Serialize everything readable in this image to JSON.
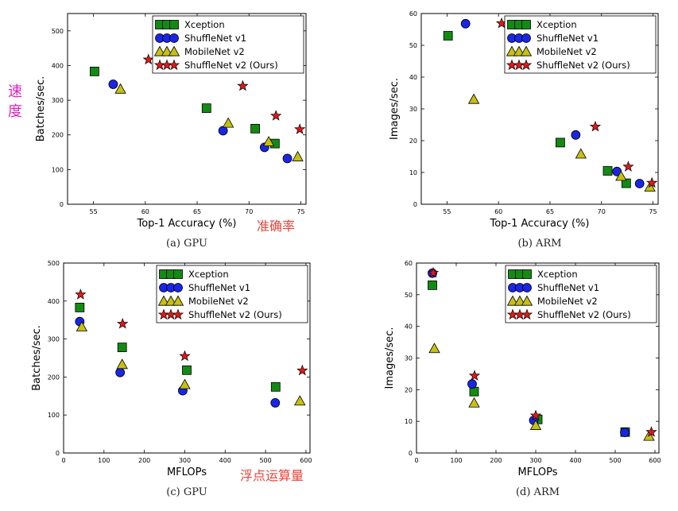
{
  "series_styles": {
    "Xception": {
      "marker": "square",
      "color": "#138a13"
    },
    "ShuffleNet v1": {
      "marker": "circle",
      "color": "#1a26e6"
    },
    "MobileNet v2": {
      "marker": "triangle",
      "color": "#c7c010"
    },
    "ShuffleNet v2 (Ours)": {
      "marker": "star",
      "color": "#e01818"
    }
  },
  "annotations": {
    "speed": [
      "速",
      "度"
    ],
    "accuracy": "准确率",
    "mflops": "浮点运算量"
  },
  "chart_data": [
    {
      "id": "a",
      "type": "scatter",
      "caption": "(a) GPU",
      "xlabel": "Top-1 Accuracy (%)",
      "ylabel": "Batches/sec.",
      "xlim": [
        52.5,
        75.5
      ],
      "ylim": [
        0,
        550
      ],
      "xticks": [
        55,
        60,
        65,
        70,
        75
      ],
      "yticks": [
        0,
        100,
        200,
        300,
        400,
        500
      ],
      "legend": "top-right",
      "series": [
        {
          "name": "Xception",
          "points": [
            [
              55.1,
              383
            ],
            [
              65.9,
              277
            ],
            [
              70.6,
              218
            ],
            [
              72.5,
              175
            ]
          ]
        },
        {
          "name": "ShuffleNet v1",
          "points": [
            [
              56.9,
              346
            ],
            [
              67.5,
              212
            ],
            [
              71.5,
              164
            ],
            [
              73.7,
              132
            ]
          ]
        },
        {
          "name": "MobileNet v2",
          "points": [
            [
              57.6,
              332
            ],
            [
              68.0,
              234
            ],
            [
              71.9,
              180
            ],
            [
              74.7,
              137
            ]
          ]
        },
        {
          "name": "ShuffleNet v2 (Ours)",
          "points": [
            [
              60.3,
              417
            ],
            [
              69.4,
              341
            ],
            [
              72.6,
              255
            ],
            [
              74.9,
              216
            ]
          ]
        }
      ]
    },
    {
      "id": "b",
      "type": "scatter",
      "caption": "(b) ARM",
      "xlabel": "Top-1 Accuracy (%)",
      "ylabel": "Images/sec.",
      "xlim": [
        52.5,
        75.5
      ],
      "ylim": [
        0,
        60
      ],
      "xticks": [
        55,
        60,
        65,
        70,
        75
      ],
      "yticks": [
        0,
        10,
        20,
        30,
        40,
        50,
        60
      ],
      "legend": "top-right",
      "series": [
        {
          "name": "Xception",
          "points": [
            [
              55.1,
              53
            ],
            [
              66.0,
              19.4
            ],
            [
              70.6,
              10.5
            ],
            [
              72.4,
              6.6
            ]
          ]
        },
        {
          "name": "ShuffleNet v1",
          "points": [
            [
              56.8,
              56.8
            ],
            [
              67.5,
              21.8
            ],
            [
              71.5,
              10.3
            ],
            [
              73.7,
              6.5
            ]
          ]
        },
        {
          "name": "MobileNet v2",
          "points": [
            [
              57.6,
              33
            ],
            [
              68.0,
              15.8
            ],
            [
              71.9,
              8.8
            ],
            [
              74.7,
              5.4
            ]
          ]
        },
        {
          "name": "ShuffleNet v2 (Ours)",
          "points": [
            [
              60.3,
              56.9
            ],
            [
              69.4,
              24.4
            ],
            [
              72.6,
              11.8
            ],
            [
              74.9,
              6.7
            ]
          ]
        }
      ]
    },
    {
      "id": "c",
      "type": "scatter",
      "caption": "(c) GPU",
      "xlabel": "MFLOPs",
      "ylabel": "Batches/sec.",
      "xlim": [
        0,
        610
      ],
      "ylim": [
        0,
        500
      ],
      "xticks": [
        0,
        100,
        200,
        300,
        400,
        500,
        600
      ],
      "yticks": [
        0,
        100,
        200,
        300,
        400,
        500
      ],
      "legend": "top-right",
      "series": [
        {
          "name": "Xception",
          "points": [
            [
              40,
              383
            ],
            [
              145,
              278
            ],
            [
              305,
              218
            ],
            [
              525,
              174
            ]
          ]
        },
        {
          "name": "ShuffleNet v1",
          "points": [
            [
              40,
              346
            ],
            [
              140,
              212
            ],
            [
              295,
              164
            ],
            [
              524,
              132
            ]
          ]
        },
        {
          "name": "MobileNet v2",
          "points": [
            [
              45,
              332
            ],
            [
              145,
              233
            ],
            [
              300,
              180
            ],
            [
              585,
              137
            ]
          ]
        },
        {
          "name": "ShuffleNet v2 (Ours)",
          "points": [
            [
              42,
              417
            ],
            [
              146,
              340
            ],
            [
              300,
              255
            ],
            [
              591,
              217
            ]
          ]
        }
      ]
    },
    {
      "id": "d",
      "type": "scatter",
      "caption": "(d) ARM",
      "xlabel": "MFLOPs",
      "ylabel": "Images/sec.",
      "xlim": [
        0,
        610
      ],
      "ylim": [
        0,
        60
      ],
      "xticks": [
        0,
        100,
        200,
        300,
        400,
        500,
        600
      ],
      "yticks": [
        0,
        10,
        20,
        30,
        40,
        50,
        60
      ],
      "legend": "top-right",
      "series": [
        {
          "name": "Xception",
          "points": [
            [
              40,
              53
            ],
            [
              145,
              19.4
            ],
            [
              305,
              10.6
            ],
            [
              525,
              6.6
            ]
          ]
        },
        {
          "name": "ShuffleNet v1",
          "points": [
            [
              40,
              56.8
            ],
            [
              140,
              21.8
            ],
            [
              295,
              10.3
            ],
            [
              524,
              6.5
            ]
          ]
        },
        {
          "name": "MobileNet v2",
          "points": [
            [
              45,
              33
            ],
            [
              145,
              15.8
            ],
            [
              300,
              8.7
            ],
            [
              585,
              5.3
            ]
          ]
        },
        {
          "name": "ShuffleNet v2 (Ours)",
          "points": [
            [
              42,
              56.9
            ],
            [
              146,
              24.4
            ],
            [
              300,
              11.8
            ],
            [
              591,
              6.6
            ]
          ]
        }
      ]
    }
  ]
}
